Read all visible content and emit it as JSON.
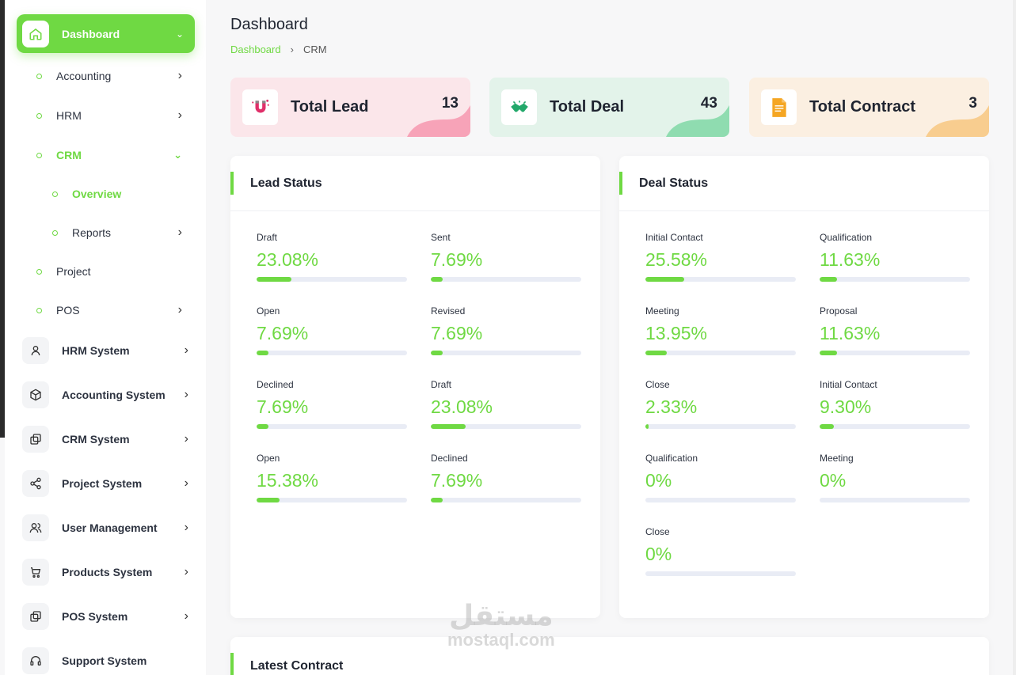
{
  "sidebar": {
    "active": {
      "label": "Dashboard",
      "icon": "home-icon"
    },
    "sub": [
      {
        "label": "Accounting",
        "chevron": "›"
      },
      {
        "label": "HRM",
        "chevron": "›"
      },
      {
        "label": "CRM",
        "chevron": "⌄"
      },
      {
        "label": "Overview"
      },
      {
        "label": "Reports",
        "chevron": "›"
      },
      {
        "label": "Project"
      },
      {
        "label": "POS",
        "chevron": "›"
      }
    ],
    "systems": [
      {
        "label": "HRM System",
        "icon": "user-icon"
      },
      {
        "label": "Accounting System",
        "icon": "box-icon"
      },
      {
        "label": "CRM System",
        "icon": "layers-icon"
      },
      {
        "label": "Project System",
        "icon": "share-icon"
      },
      {
        "label": "User Management",
        "icon": "users-icon"
      },
      {
        "label": "Products System",
        "icon": "cart-icon"
      },
      {
        "label": "POS System",
        "icon": "layers-icon"
      },
      {
        "label": "Support System",
        "icon": "headset-icon"
      }
    ],
    "chevron": "›"
  },
  "header": {
    "title": "Dashboard",
    "breadcrumb": [
      "Dashboard",
      "CRM"
    ],
    "separator": "›"
  },
  "stats": [
    {
      "label": "Total Lead",
      "value": "13",
      "bg": "#fbe6ea",
      "wave": "#f7a3b8",
      "icon": "magnet-icon"
    },
    {
      "label": "Total Deal",
      "value": "43",
      "bg": "#e3f3ea",
      "wave": "#8fdcb0",
      "icon": "handshake-icon"
    },
    {
      "label": "Total Contract",
      "value": "3",
      "bg": "#fbefe1",
      "wave": "#f8cd8f",
      "icon": "document-icon"
    }
  ],
  "lead_status": {
    "title": "Lead Status",
    "items": [
      {
        "name": "Draft",
        "pct": "23.08%",
        "value": 23.08
      },
      {
        "name": "Sent",
        "pct": "7.69%",
        "value": 7.69
      },
      {
        "name": "Open",
        "pct": "7.69%",
        "value": 7.69
      },
      {
        "name": "Revised",
        "pct": "7.69%",
        "value": 7.69
      },
      {
        "name": "Declined",
        "pct": "7.69%",
        "value": 7.69
      },
      {
        "name": "Draft",
        "pct": "23.08%",
        "value": 23.08
      },
      {
        "name": "Open",
        "pct": "15.38%",
        "value": 15.38
      },
      {
        "name": "Declined",
        "pct": "7.69%",
        "value": 7.69
      }
    ]
  },
  "deal_status": {
    "title": "Deal Status",
    "items": [
      {
        "name": "Initial Contact",
        "pct": "25.58%",
        "value": 25.58
      },
      {
        "name": "Qualification",
        "pct": "11.63%",
        "value": 11.63
      },
      {
        "name": "Meeting",
        "pct": "13.95%",
        "value": 13.95
      },
      {
        "name": "Proposal",
        "pct": "11.63%",
        "value": 11.63
      },
      {
        "name": "Close",
        "pct": "2.33%",
        "value": 2.33
      },
      {
        "name": "Initial Contact",
        "pct": "9.30%",
        "value": 9.3
      },
      {
        "name": "Qualification",
        "pct": "0%",
        "value": 0
      },
      {
        "name": "Meeting",
        "pct": "0%",
        "value": 0
      },
      {
        "name": "Close",
        "pct": "0%",
        "value": 0
      }
    ]
  },
  "latest_contract": {
    "title": "Latest Contract"
  },
  "watermark": {
    "arabic": "مستقل",
    "latin": "mostaql.com"
  },
  "colors": {
    "accent": "#6fd943"
  }
}
